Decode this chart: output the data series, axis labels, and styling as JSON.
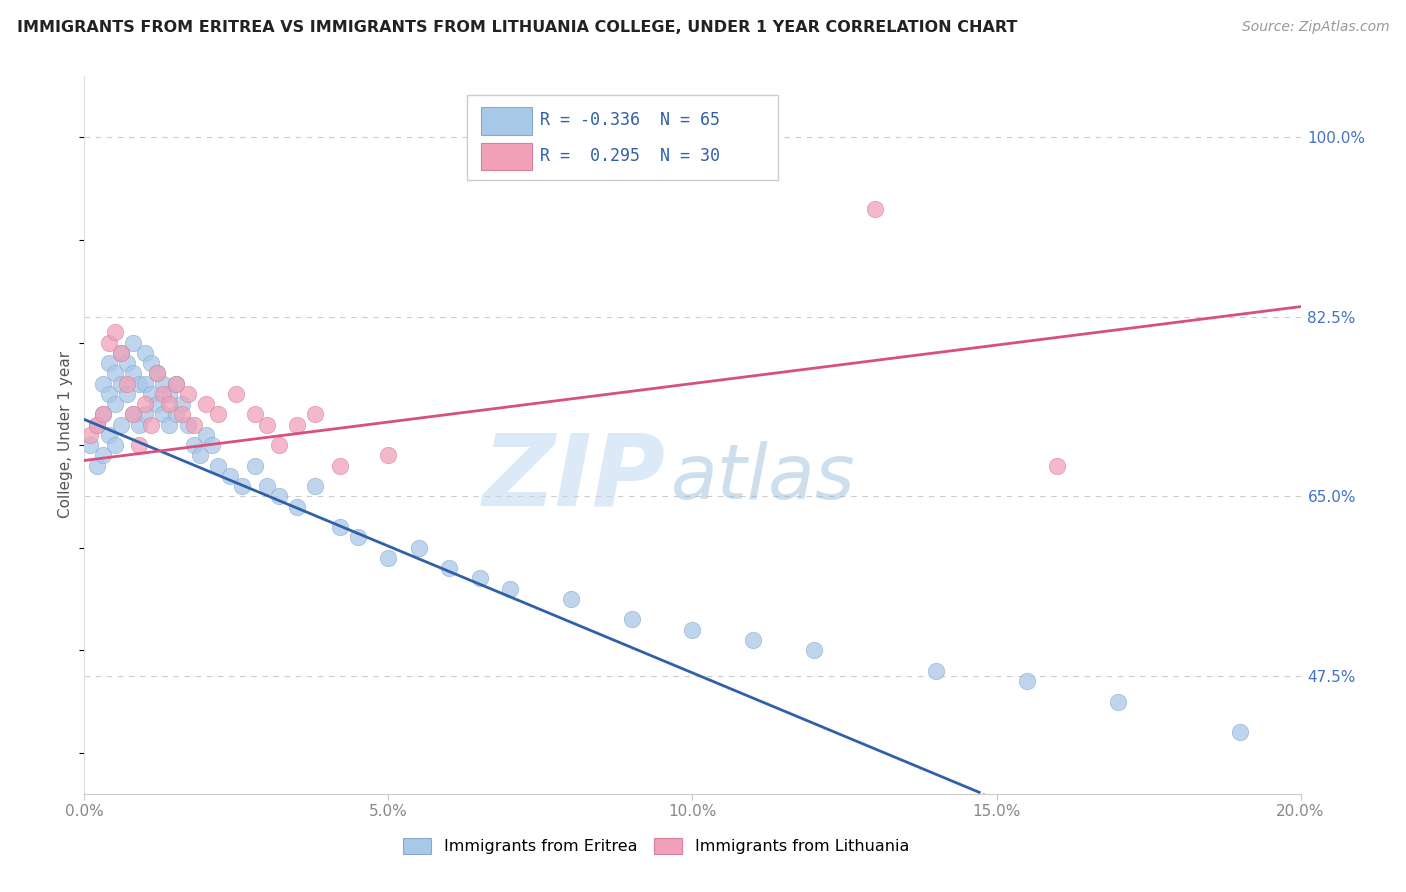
{
  "title": "IMMIGRANTS FROM ERITREA VS IMMIGRANTS FROM LITHUANIA COLLEGE, UNDER 1 YEAR CORRELATION CHART",
  "source": "Source: ZipAtlas.com",
  "ylabel": "College, Under 1 year",
  "r_eritrea": -0.336,
  "n_eritrea": 65,
  "r_lithuania": 0.295,
  "n_lithuania": 30,
  "xlim": [
    0.0,
    0.2
  ],
  "ylim": [
    0.36,
    1.06
  ],
  "yticks": [
    0.475,
    0.65,
    0.825,
    1.0
  ],
  "ytick_labels": [
    "47.5%",
    "65.0%",
    "82.5%",
    "100.0%"
  ],
  "xticks": [
    0.0,
    0.05,
    0.1,
    0.15,
    0.2
  ],
  "xtick_labels": [
    "0.0%",
    "5.0%",
    "10.0%",
    "15.0%",
    "20.0%"
  ],
  "color_eritrea": "#A8C8E8",
  "color_eritrea_edge": "#88A8CC",
  "color_lithuania": "#F0A0B8",
  "color_lithuania_edge": "#D88098",
  "line_color_eritrea": "#3060A8",
  "line_color_lithuania": "#D85080",
  "background_color": "#ffffff",
  "watermark_zip_color": "#C0D8F0",
  "watermark_atlas_color": "#90B8D8",
  "title_color": "#222222",
  "source_color": "#999999",
  "ylabel_color": "#555555",
  "tick_color": "#888888",
  "right_tick_color": "#4472C4",
  "grid_color": "#cccccc",
  "legend_label1": "Immigrants from Eritrea",
  "legend_label2": "Immigrants from Lithuania",
  "eritrea_x": [
    0.001,
    0.002,
    0.002,
    0.003,
    0.003,
    0.003,
    0.004,
    0.004,
    0.004,
    0.005,
    0.005,
    0.005,
    0.006,
    0.006,
    0.006,
    0.007,
    0.007,
    0.008,
    0.008,
    0.008,
    0.009,
    0.009,
    0.01,
    0.01,
    0.01,
    0.011,
    0.011,
    0.012,
    0.012,
    0.013,
    0.013,
    0.014,
    0.014,
    0.015,
    0.015,
    0.016,
    0.017,
    0.018,
    0.019,
    0.02,
    0.021,
    0.022,
    0.024,
    0.026,
    0.028,
    0.03,
    0.032,
    0.035,
    0.038,
    0.042,
    0.045,
    0.05,
    0.055,
    0.06,
    0.065,
    0.07,
    0.08,
    0.09,
    0.1,
    0.11,
    0.12,
    0.14,
    0.155,
    0.17,
    0.19
  ],
  "eritrea_y": [
    0.7,
    0.72,
    0.68,
    0.76,
    0.73,
    0.69,
    0.78,
    0.75,
    0.71,
    0.77,
    0.74,
    0.7,
    0.79,
    0.76,
    0.72,
    0.78,
    0.75,
    0.8,
    0.77,
    0.73,
    0.76,
    0.72,
    0.79,
    0.76,
    0.73,
    0.78,
    0.75,
    0.77,
    0.74,
    0.76,
    0.73,
    0.75,
    0.72,
    0.76,
    0.73,
    0.74,
    0.72,
    0.7,
    0.69,
    0.71,
    0.7,
    0.68,
    0.67,
    0.66,
    0.68,
    0.66,
    0.65,
    0.64,
    0.66,
    0.62,
    0.61,
    0.59,
    0.6,
    0.58,
    0.57,
    0.56,
    0.55,
    0.53,
    0.52,
    0.51,
    0.5,
    0.48,
    0.47,
    0.45,
    0.42
  ],
  "lithuania_x": [
    0.001,
    0.002,
    0.003,
    0.004,
    0.005,
    0.006,
    0.007,
    0.008,
    0.009,
    0.01,
    0.011,
    0.012,
    0.013,
    0.014,
    0.015,
    0.016,
    0.017,
    0.018,
    0.02,
    0.022,
    0.025,
    0.028,
    0.03,
    0.032,
    0.035,
    0.038,
    0.042,
    0.05,
    0.13,
    0.16
  ],
  "lithuania_y": [
    0.71,
    0.72,
    0.73,
    0.8,
    0.81,
    0.79,
    0.76,
    0.73,
    0.7,
    0.74,
    0.72,
    0.77,
    0.75,
    0.74,
    0.76,
    0.73,
    0.75,
    0.72,
    0.74,
    0.73,
    0.75,
    0.73,
    0.72,
    0.7,
    0.72,
    0.73,
    0.68,
    0.69,
    0.93,
    0.68
  ]
}
